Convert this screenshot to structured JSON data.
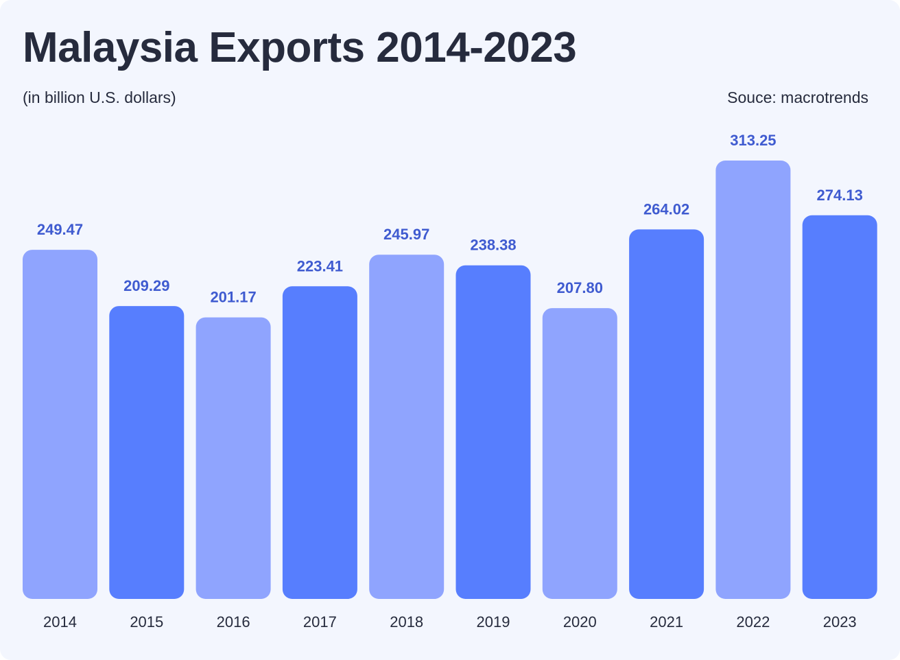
{
  "header": {
    "title": "Malaysia Exports 2014-2023",
    "subtitle": "(in billion U.S. dollars)",
    "source": "Souce: macrotrends"
  },
  "colors": {
    "background": "#f3f6fe",
    "bar_light": "#8fa4fe",
    "bar_dark": "#577efe",
    "value_label": "#3f5bd0",
    "text": "#262b3d"
  },
  "chart_data": {
    "type": "bar",
    "title": "Malaysia Exports 2014-2023",
    "subtitle": "(in billion U.S. dollars)",
    "categories": [
      "2014",
      "2015",
      "2016",
      "2017",
      "2018",
      "2019",
      "2020",
      "2021",
      "2022",
      "2023"
    ],
    "values": [
      249.47,
      209.29,
      201.17,
      223.41,
      245.97,
      238.38,
      207.8,
      264.02,
      313.25,
      274.13
    ],
    "value_labels": [
      "249.47",
      "209.29",
      "201.17",
      "223.41",
      "245.97",
      "238.38",
      "207.80",
      "264.02",
      "313.25",
      "274.13"
    ],
    "bar_color_pattern": [
      "light",
      "dark",
      "light",
      "dark",
      "light",
      "dark",
      "light",
      "dark",
      "light",
      "dark"
    ],
    "xlabel": "",
    "ylabel": "",
    "ylim": [
      0,
      313.25
    ],
    "grid": false,
    "legend": "none"
  }
}
